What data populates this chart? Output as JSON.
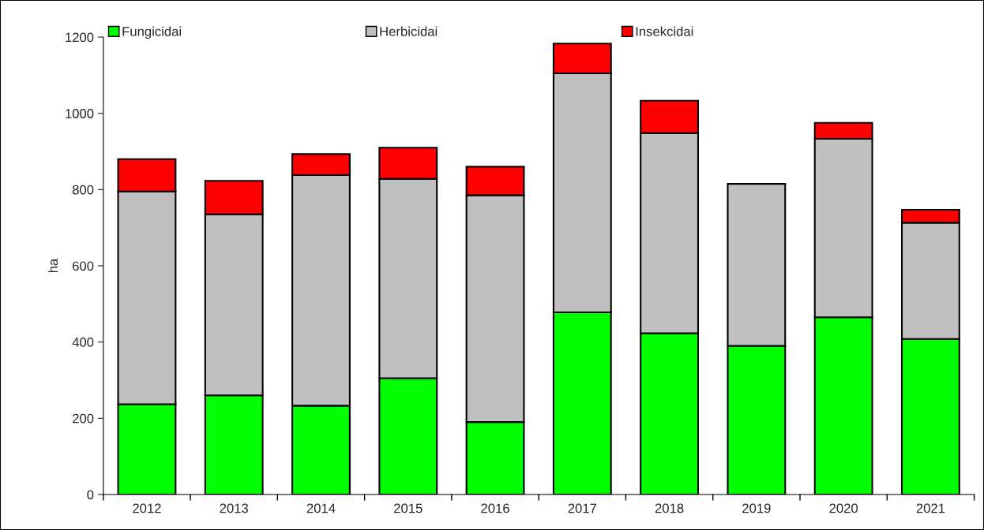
{
  "chart_data": {
    "type": "bar",
    "stacked": true,
    "ylabel": "ha",
    "categories": [
      "2012",
      "2013",
      "2014",
      "2015",
      "2016",
      "2017",
      "2018",
      "2019",
      "2020",
      "2021"
    ],
    "series": [
      {
        "name": "Fungicidai",
        "color": "#00ff00",
        "values": [
          237,
          260,
          233,
          305,
          190,
          478,
          423,
          390,
          465,
          408
        ]
      },
      {
        "name": "Herbicidai",
        "color": "#c0c0c0",
        "values": [
          558,
          475,
          605,
          523,
          595,
          627,
          525,
          425,
          468,
          305
        ]
      },
      {
        "name": "Insekcidai",
        "color": "#ff0000",
        "values": [
          85,
          88,
          55,
          82,
          75,
          78,
          85,
          null,
          42,
          34
        ]
      }
    ],
    "ylim": [
      0,
      1200
    ],
    "yticks": [
      0,
      200,
      400,
      600,
      800,
      1000,
      1200
    ],
    "grid": false,
    "legend": "top"
  }
}
